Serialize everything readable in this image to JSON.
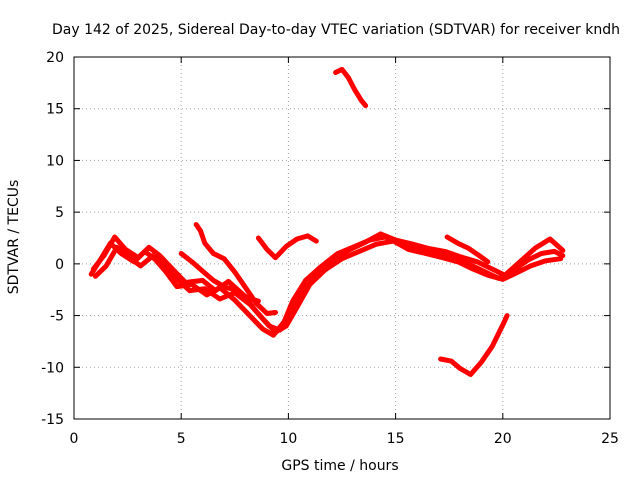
{
  "chart_data": {
    "type": "line",
    "title": "Day 142 of 2025, Sidereal Day-to-day VTEC variation (SDTVAR) for receiver kndh",
    "xlabel": "GPS time / hours",
    "ylabel": "SDTVAR / TECUs",
    "xlim": [
      0,
      25
    ],
    "ylim": [
      -15,
      20
    ],
    "xticks": [
      "0",
      "5",
      "10",
      "15",
      "20",
      "25"
    ],
    "yticks": [
      "-15",
      "-10",
      "-5",
      "0",
      "5",
      "10",
      "15",
      "20"
    ],
    "grid": true,
    "marker": "+",
    "color": "#ff0000",
    "series": [
      {
        "name": "trace-1",
        "x": [
          0.8,
          1.2,
          1.7,
          2.2,
          2.8,
          3.3,
          3.8,
          4.3,
          4.8,
          5.5,
          6.2,
          6.8,
          7.5,
          8.2,
          8.8,
          9.3,
          9.8,
          10.2,
          10.8,
          11.5,
          12.3,
          13.0,
          13.8,
          14.5,
          15.2,
          15.8,
          16.5,
          17.2,
          17.8,
          18.5,
          19.2,
          19.8,
          20.5,
          21.2,
          21.8,
          22.4,
          22.8
        ],
        "y": [
          -1.0,
          0.3,
          2.0,
          1.0,
          0.2,
          1.2,
          0.4,
          -0.8,
          -2.2,
          -2.0,
          -3.0,
          -2.3,
          -3.5,
          -5.0,
          -6.3,
          -6.9,
          -5.6,
          -3.6,
          -1.6,
          -0.3,
          1.0,
          1.6,
          2.3,
          2.6,
          2.0,
          1.6,
          1.2,
          0.9,
          0.4,
          -0.1,
          -0.8,
          -1.4,
          -0.6,
          0.4,
          1.0,
          1.2,
          0.8
        ]
      },
      {
        "name": "trace-2",
        "x": [
          0.9,
          1.4,
          1.9,
          2.4,
          3.0,
          3.5,
          4.0,
          4.5,
          5.2,
          6.0,
          6.6,
          7.2,
          7.9,
          8.5,
          9.1,
          9.6,
          10.1,
          10.6,
          11.3,
          12.0,
          12.8,
          13.6,
          14.3,
          15.0,
          15.8,
          16.5,
          17.3,
          18.0,
          18.8,
          19.5,
          20.1,
          20.8,
          21.5,
          22.2,
          22.8
        ],
        "y": [
          -0.5,
          0.8,
          2.6,
          1.4,
          0.6,
          1.6,
          0.8,
          -0.3,
          -1.8,
          -1.6,
          -2.6,
          -1.7,
          -3.0,
          -4.6,
          -6.0,
          -6.4,
          -4.9,
          -2.9,
          -1.1,
          0.1,
          1.3,
          2.1,
          2.9,
          2.3,
          1.9,
          1.5,
          1.2,
          0.7,
          0.2,
          -0.5,
          -1.1,
          0.2,
          1.5,
          2.4,
          1.3
        ]
      },
      {
        "name": "trace-3",
        "x": [
          1.0,
          1.5,
          2.0,
          2.6,
          3.1,
          3.7,
          4.2,
          4.7,
          5.4,
          6.1,
          6.8,
          7.5,
          8.2,
          8.8,
          9.4,
          9.9,
          10.4,
          11.0,
          11.7,
          12.5,
          13.3,
          14.1,
          14.9,
          15.6,
          16.4,
          17.2,
          17.9,
          18.6,
          19.3,
          20.0,
          20.6,
          21.3,
          22.0,
          22.7
        ],
        "y": [
          -1.2,
          -0.2,
          1.6,
          0.6,
          -0.2,
          0.8,
          0.0,
          -1.3,
          -2.6,
          -2.4,
          -3.4,
          -2.8,
          -3.9,
          -5.3,
          -6.6,
          -6.0,
          -4.2,
          -2.0,
          -0.6,
          0.5,
          1.2,
          1.9,
          2.2,
          1.4,
          1.0,
          0.6,
          0.2,
          -0.5,
          -1.1,
          -1.5,
          -0.9,
          -0.2,
          0.3,
          0.5
        ]
      },
      {
        "name": "trace-4",
        "x": [
          5.0,
          5.5,
          6.0,
          6.5,
          7.0,
          7.6,
          8.1,
          8.6
        ],
        "y": [
          1.0,
          0.2,
          -0.7,
          -1.6,
          -2.2,
          -2.6,
          -3.3,
          -3.6
        ]
      },
      {
        "name": "trace-5",
        "x": [
          5.7,
          5.9,
          6.1,
          6.5,
          7.0,
          7.5,
          8.0,
          8.5,
          9.0,
          9.4
        ],
        "y": [
          3.8,
          3.2,
          2.0,
          1.0,
          0.5,
          -0.8,
          -2.3,
          -3.8,
          -4.8,
          -4.7
        ]
      },
      {
        "name": "trace-6",
        "x": [
          8.6,
          9.0,
          9.4,
          9.9,
          10.4,
          10.9,
          11.3
        ],
        "y": [
          2.5,
          1.4,
          0.6,
          1.7,
          2.4,
          2.7,
          2.2
        ]
      },
      {
        "name": "trace-7",
        "x": [
          12.2,
          12.5,
          12.8,
          13.1,
          13.4,
          13.6
        ],
        "y": [
          18.5,
          18.8,
          18.0,
          16.8,
          15.8,
          15.3
        ]
      },
      {
        "name": "trace-8",
        "x": [
          17.1,
          17.6,
          18.0,
          18.5,
          19.0,
          19.5,
          20.0,
          20.2
        ],
        "y": [
          -9.2,
          -9.4,
          -10.1,
          -10.7,
          -9.5,
          -8.0,
          -5.9,
          -5.0
        ]
      },
      {
        "name": "trace-9",
        "x": [
          17.4,
          17.9,
          18.4,
          18.9,
          19.3
        ],
        "y": [
          2.6,
          2.0,
          1.5,
          0.8,
          0.2
        ]
      }
    ]
  }
}
